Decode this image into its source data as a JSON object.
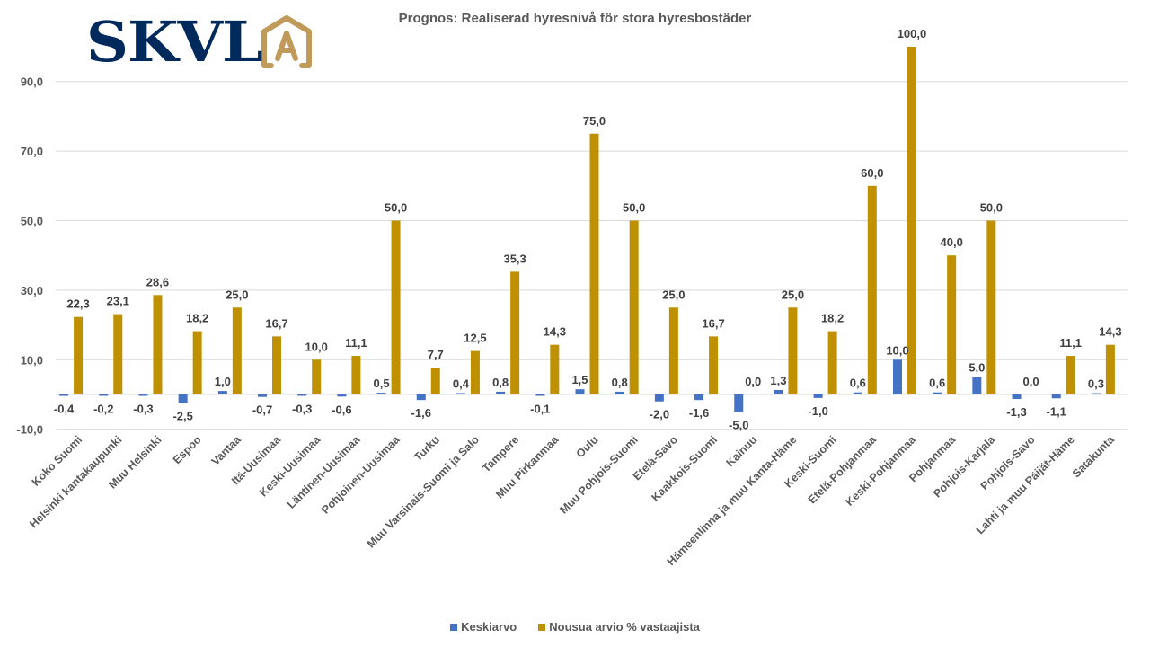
{
  "logo": {
    "text": "SKVL",
    "icon": "house-a-icon",
    "colors": {
      "text": "#002a5c",
      "icon": "#c09a5b"
    }
  },
  "chart_data": {
    "type": "bar",
    "title": "Prognos: Realiserad hyresnivå för stora hyresbostäder",
    "xlabel": "",
    "ylabel": "",
    "ylim": [
      -10,
      100
    ],
    "yticks": [
      -10,
      10,
      30,
      50,
      70,
      90
    ],
    "ytick_labels": [
      "-10,0",
      "10,0",
      "30,0",
      "50,0",
      "70,0",
      "90,0"
    ],
    "gridlines": [
      -10,
      0,
      10,
      30,
      50,
      70,
      90
    ],
    "grid": true,
    "legend_position": "bottom",
    "categories": [
      "Koko Suomi",
      "Helsinki kantakaupunki",
      "Muu Helsinki",
      "Espoo",
      "Vantaa",
      "Itä-Uusimaa",
      "Keski-Uusimaa",
      "Läntinen-Uusimaa",
      "Pohjoinen-Uusimaa",
      "Turku",
      "Muu Varsinais-Suomi ja Salo",
      "Tampere",
      "Muu Pirkanmaa",
      "Oulu",
      "Muu Pohjois-Suomi",
      "Etelä-Savo",
      "Kaakkois-Suomi",
      "Kainuu",
      "Hämeenlinna ja muu Kanta-Häme",
      "Keski-Suomi",
      "Etelä-Pohjanmaa",
      "Keski-Pohjanmaa",
      "Pohjanmaa",
      "Pohjois-Karjala",
      "Pohjois-Savo",
      "Lahti ja muu Päijät-Häme",
      "Satakunta"
    ],
    "series": [
      {
        "name": "Keskiarvo",
        "color": "#4472c4",
        "values": [
          -0.4,
          -0.2,
          -0.3,
          -2.5,
          1.0,
          -0.7,
          -0.3,
          -0.6,
          0.5,
          -1.6,
          0.4,
          0.8,
          -0.1,
          1.5,
          0.8,
          -2.0,
          -1.6,
          -5.0,
          1.3,
          -1.0,
          0.6,
          10.0,
          0.6,
          5.0,
          -1.3,
          -1.1,
          0.3
        ],
        "labels": [
          "-0,4",
          "-0,2",
          "-0,3",
          "-2,5",
          "1,0",
          "-0,7",
          "-0,3",
          "-0,6",
          "0,5",
          "-1,6",
          "0,4",
          "0,8",
          "-0,1",
          "1,5",
          "0,8",
          "-2,0",
          "-1,6",
          "-5,0",
          "1,3",
          "-1,0",
          "0,6",
          "10,0",
          "0,6",
          "5,0",
          "-1,3",
          "-1,1",
          "0,3"
        ]
      },
      {
        "name": "Nousua arvio % vastaajista",
        "color": "#bf9000",
        "values": [
          22.3,
          23.1,
          28.6,
          18.2,
          25.0,
          16.7,
          10.0,
          11.1,
          50.0,
          7.7,
          12.5,
          35.3,
          14.3,
          75.0,
          50.0,
          25.0,
          16.7,
          0.0,
          25.0,
          18.2,
          60.0,
          100.0,
          40.0,
          50.0,
          0.0,
          11.1,
          14.3
        ],
        "labels": [
          "22,3",
          "23,1",
          "28,6",
          "18,2",
          "25,0",
          "16,7",
          "10,0",
          "11,1",
          "50,0",
          "7,7",
          "12,5",
          "35,3",
          "14,3",
          "75,0",
          "50,0",
          "25,0",
          "16,7",
          "0,0",
          "25,0",
          "18,2",
          "60,0",
          "100,0",
          "40,0",
          "50,0",
          "0,0",
          "11,1",
          "14,3"
        ]
      }
    ]
  }
}
